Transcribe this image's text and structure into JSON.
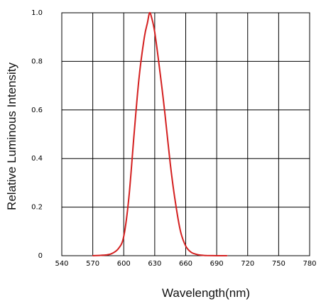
{
  "chart_data": {
    "type": "line",
    "title": "",
    "xlabel": "Wavelength(nm)",
    "ylabel": "Relative Luminous Intensity",
    "xlim": [
      540,
      780
    ],
    "ylim": [
      0,
      1.0
    ],
    "x_ticks": [
      540,
      570,
      600,
      630,
      660,
      690,
      720,
      750,
      780
    ],
    "x_tick_labels": [
      "540",
      "570",
      "600",
      "630",
      "660",
      "690",
      "720",
      "750",
      "780"
    ],
    "y_ticks": [
      0,
      0.2,
      0.4,
      0.6,
      0.8,
      1.0
    ],
    "y_tick_labels": [
      "0",
      "0.2",
      "0.4",
      "0.6",
      "0.8",
      "1.0"
    ],
    "grid": true,
    "legend": "none",
    "series": [
      {
        "color": "#d42020",
        "x": [
          570,
          580,
          588,
          595,
          600,
          605,
          610,
          615,
          620,
          623,
          625,
          627,
          630,
          635,
          640,
          645,
          650,
          655,
          660,
          665,
          670,
          675,
          680,
          690,
          700
        ],
        "y": [
          0,
          0.002,
          0.008,
          0.03,
          0.08,
          0.24,
          0.5,
          0.74,
          0.9,
          0.96,
          1.0,
          0.98,
          0.92,
          0.76,
          0.58,
          0.38,
          0.22,
          0.1,
          0.04,
          0.015,
          0.006,
          0.002,
          0.001,
          0,
          0
        ]
      }
    ]
  }
}
